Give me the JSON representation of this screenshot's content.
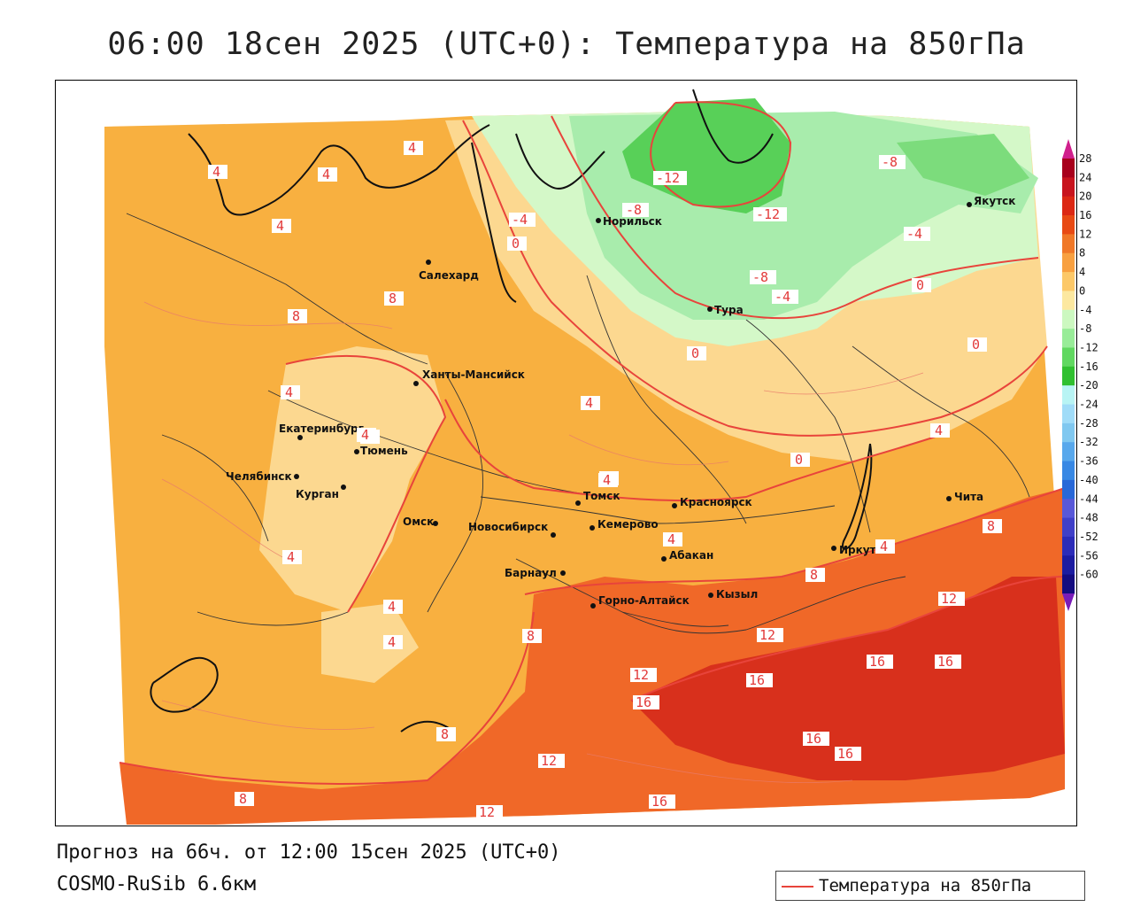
{
  "title": "06:00 18сен 2025 (UTC+0): Температура на 850гПа",
  "footer": {
    "forecast": "Прогноз на 66ч. от 12:00 15сен 2025 (UTC+0)",
    "model": "COSMO-RuSib 6.6км"
  },
  "legend": {
    "label": "Температура на 850гПа",
    "line_color": "#e8443b"
  },
  "colorbar": {
    "ticks": [
      "28",
      "24",
      "20",
      "16",
      "12",
      "8",
      "4",
      "0",
      "-4",
      "-8",
      "-12",
      "-16",
      "-20",
      "-24",
      "-28",
      "-32",
      "-36",
      "-40",
      "-44",
      "-48",
      "-52",
      "-56",
      "-60"
    ],
    "colors": [
      "#a8001c",
      "#c8141e",
      "#dc2814",
      "#e84a14",
      "#f07828",
      "#f8a040",
      "#fcc868",
      "#fce8a0",
      "#ccf8c0",
      "#98ec98",
      "#60d860",
      "#30c030",
      "#b8f4f4",
      "#a0dcf8",
      "#80c8f0",
      "#58a8ec",
      "#3888e4",
      "#2868d8",
      "#5858d8",
      "#4040c8",
      "#2c2cb8",
      "#1c1ca0",
      "#140c80"
    ]
  },
  "cities": [
    {
      "name": "Салехард"
    },
    {
      "name": "Норильск"
    },
    {
      "name": "Тура"
    },
    {
      "name": "Якутск"
    },
    {
      "name": "Ханты-Мансийск"
    },
    {
      "name": "Екатеринбург"
    },
    {
      "name": "Тюмень"
    },
    {
      "name": "Челябинск"
    },
    {
      "name": "Курган"
    },
    {
      "name": "Омск"
    },
    {
      "name": "Новосибирск"
    },
    {
      "name": "Томск"
    },
    {
      "name": "Кемерово"
    },
    {
      "name": "Красноярск"
    },
    {
      "name": "Барнаул"
    },
    {
      "name": "Абакан"
    },
    {
      "name": "Горно-Алтайск"
    },
    {
      "name": "Кызыл"
    },
    {
      "name": "Иркутск"
    },
    {
      "name": "Чита"
    }
  ],
  "isotherm_labels": [
    {
      "text": "4"
    },
    {
      "text": "4"
    },
    {
      "text": "4"
    },
    {
      "text": "4"
    },
    {
      "text": "8"
    },
    {
      "text": "8"
    },
    {
      "text": "4"
    },
    {
      "text": "4"
    },
    {
      "text": "-12"
    },
    {
      "text": "-8"
    },
    {
      "text": "-12"
    },
    {
      "text": "-8"
    },
    {
      "text": "-8"
    },
    {
      "text": "-4"
    },
    {
      "text": "-4"
    },
    {
      "text": "0"
    },
    {
      "text": "0"
    },
    {
      "text": "0"
    },
    {
      "text": "-4"
    },
    {
      "text": "0"
    },
    {
      "text": "4"
    },
    {
      "text": "4"
    },
    {
      "text": "4"
    },
    {
      "text": "0"
    },
    {
      "text": "4"
    },
    {
      "text": "4"
    },
    {
      "text": "4"
    },
    {
      "text": "8"
    },
    {
      "text": "8"
    },
    {
      "text": "12"
    },
    {
      "text": "12"
    },
    {
      "text": "16"
    },
    {
      "text": "16"
    },
    {
      "text": "16"
    },
    {
      "text": "12"
    },
    {
      "text": "16"
    },
    {
      "text": "16"
    },
    {
      "text": "16"
    },
    {
      "text": "12"
    },
    {
      "text": "8"
    },
    {
      "text": "8"
    },
    {
      "text": "8"
    },
    {
      "text": "4"
    },
    {
      "text": "12"
    },
    {
      "text": "16"
    },
    {
      "text": "4"
    },
    {
      "text": "4"
    },
    {
      "text": "4"
    }
  ]
}
